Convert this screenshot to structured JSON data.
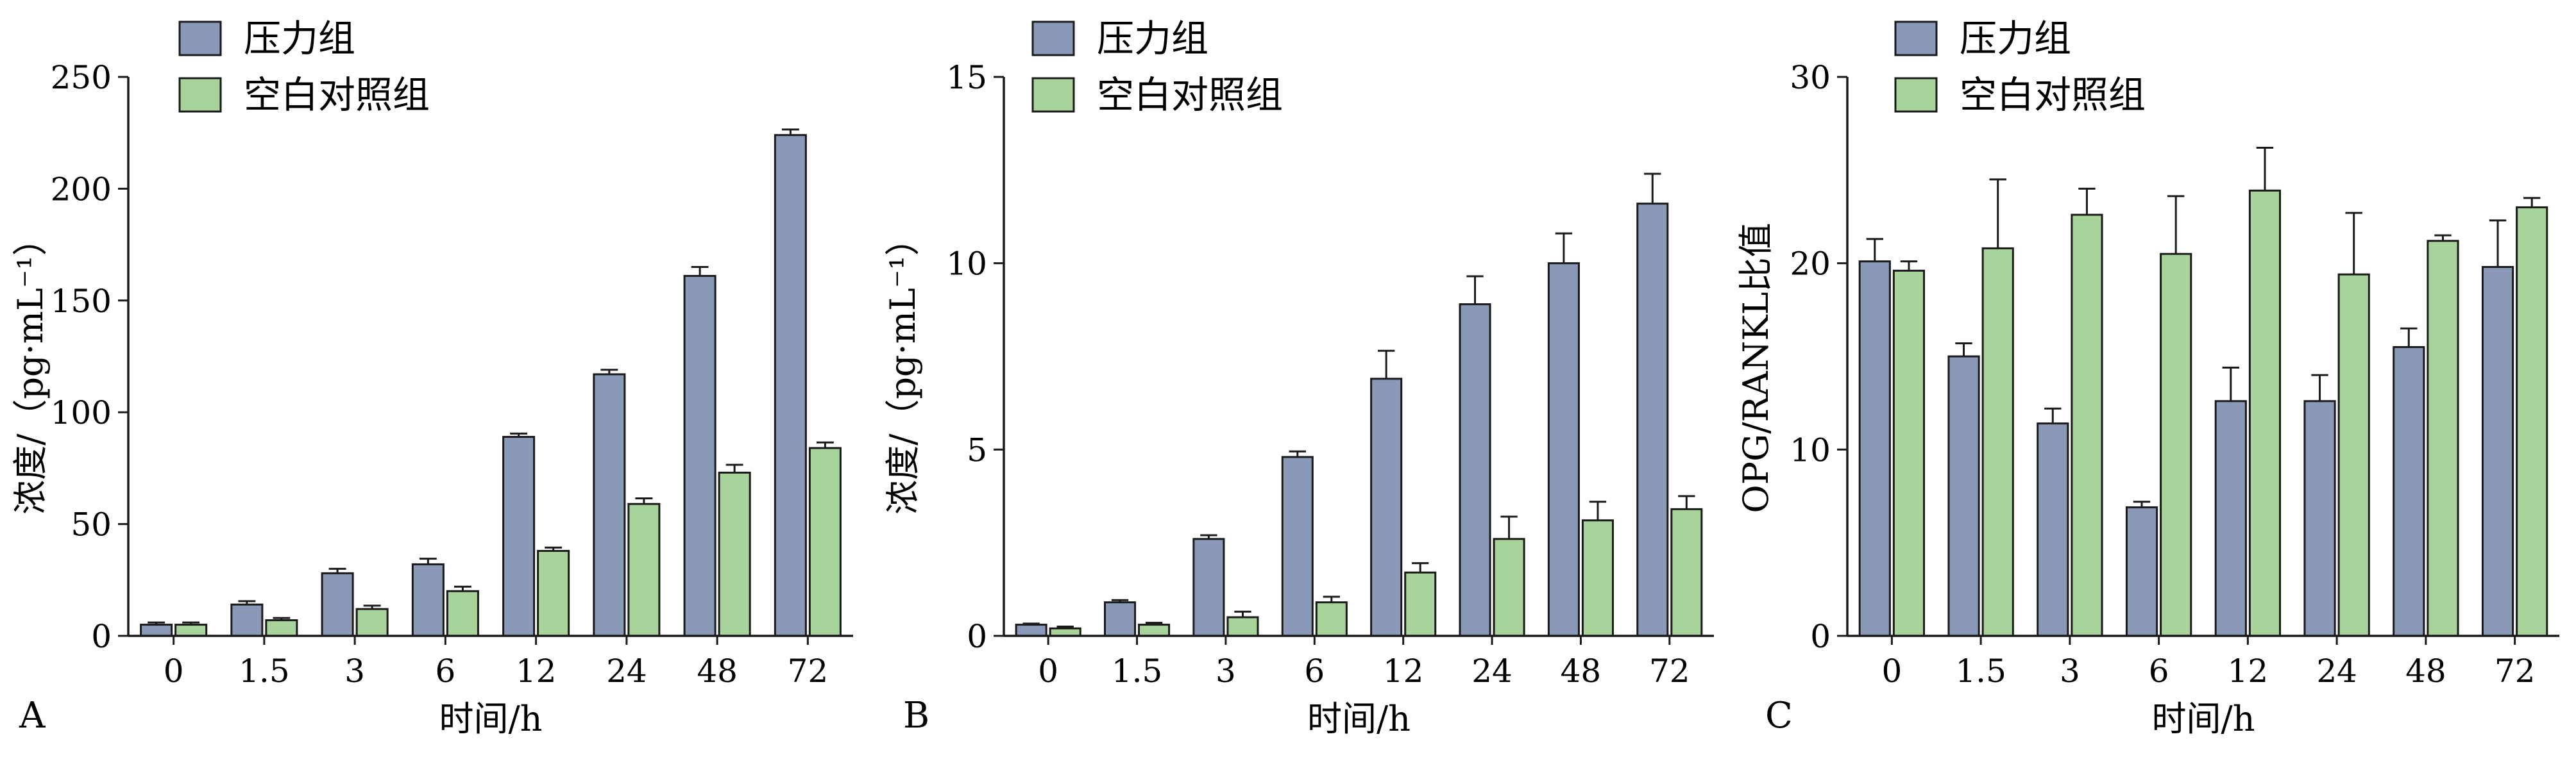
{
  "colors": {
    "pressure": "#8a99b8",
    "control": "#a8d49b",
    "stroke": "#1a1a1a"
  },
  "chart_data": [
    {
      "panel": "A",
      "type": "bar",
      "categories": [
        "0",
        "1.5",
        "3",
        "6",
        "12",
        "24",
        "48",
        "72"
      ],
      "xlabel": "时间/h",
      "ylabel": "浓度/（pg·mL⁻¹）",
      "ylim": [
        0,
        250
      ],
      "yticks": [
        0,
        50,
        100,
        150,
        200,
        250
      ],
      "legend_position": "top-left",
      "series": [
        {
          "name": "压力组",
          "values": [
            5,
            14,
            28,
            32,
            89,
            117,
            161,
            224
          ],
          "errors": [
            1,
            1.5,
            2,
            2.5,
            1.5,
            2,
            4,
            2.5
          ]
        },
        {
          "name": "空白对照组",
          "values": [
            5,
            7,
            12,
            20,
            38,
            59,
            73,
            84
          ],
          "errors": [
            1,
            1,
            1.5,
            2,
            1.5,
            2.5,
            3.5,
            2.5
          ]
        }
      ]
    },
    {
      "panel": "B",
      "type": "bar",
      "categories": [
        "0",
        "1.5",
        "3",
        "6",
        "12",
        "24",
        "48",
        "72"
      ],
      "xlabel": "时间/h",
      "ylabel": "浓度/（pg·mL⁻¹）",
      "ylim": [
        0,
        15
      ],
      "yticks": [
        0,
        5,
        10,
        15
      ],
      "legend_position": "top-left",
      "series": [
        {
          "name": "压力组",
          "values": [
            0.3,
            0.9,
            2.6,
            4.8,
            6.9,
            8.9,
            10,
            11.6
          ],
          "errors": [
            0.03,
            0.06,
            0.1,
            0.15,
            0.75,
            0.75,
            0.8,
            0.8
          ]
        },
        {
          "name": "空白对照组",
          "values": [
            0.2,
            0.3,
            0.5,
            0.9,
            1.7,
            2.6,
            3.1,
            3.4
          ],
          "errors": [
            0.05,
            0.05,
            0.15,
            0.15,
            0.25,
            0.6,
            0.5,
            0.35
          ]
        }
      ]
    },
    {
      "panel": "C",
      "type": "bar",
      "categories": [
        "0",
        "1.5",
        "3",
        "6",
        "12",
        "24",
        "48",
        "72"
      ],
      "xlabel": "时间/h",
      "ylabel": "OPG/RANKL比值",
      "ylim": [
        0,
        30
      ],
      "yticks": [
        0,
        10,
        20,
        30
      ],
      "legend_position": "top-left",
      "series": [
        {
          "name": "压力组",
          "values": [
            20.1,
            15,
            11.4,
            6.9,
            12.6,
            12.6,
            15.5,
            19.8
          ],
          "errors": [
            1.2,
            0.7,
            0.8,
            0.3,
            1.8,
            1.4,
            1,
            2.5
          ]
        },
        {
          "name": "空白对照组",
          "values": [
            19.6,
            20.8,
            22.6,
            20.5,
            23.9,
            19.4,
            21.2,
            23
          ],
          "errors": [
            0.5,
            3.7,
            1.4,
            3.1,
            2.3,
            3.3,
            0.3,
            0.5
          ]
        }
      ]
    }
  ]
}
